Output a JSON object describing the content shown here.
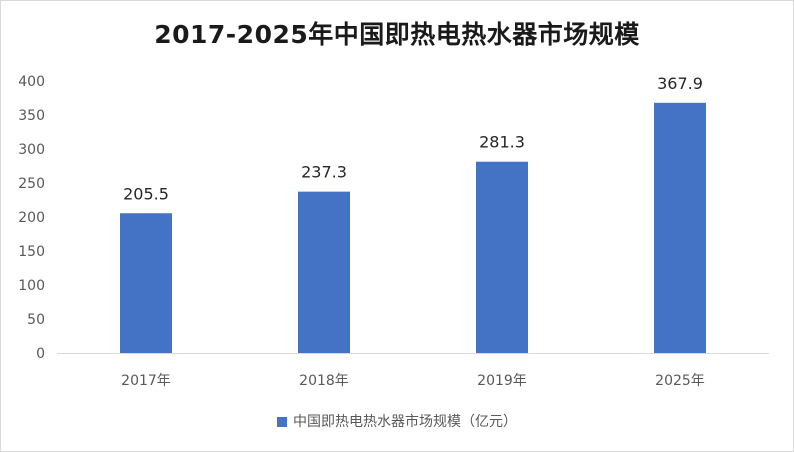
{
  "chart_data": {
    "type": "bar",
    "title": "2017-2025年中国即热电热水器市场规模",
    "categories": [
      "2017年",
      "2018年",
      "2019年",
      "2025年"
    ],
    "series": [
      {
        "name": "中国即热电热水器市场规模（亿元）",
        "values": [
          205.5,
          237.3,
          281.3,
          367.9
        ],
        "color": "#4472C4"
      }
    ],
    "data_labels": [
      "205.5",
      "237.3",
      "281.3",
      "367.9"
    ],
    "ylim": [
      0,
      400
    ],
    "yticks": [
      0,
      50,
      100,
      150,
      200,
      250,
      300,
      350,
      400
    ],
    "xlabel": "",
    "ylabel": "",
    "grid": false,
    "legend": "bottom",
    "axis_color": "#d9d9d9"
  }
}
